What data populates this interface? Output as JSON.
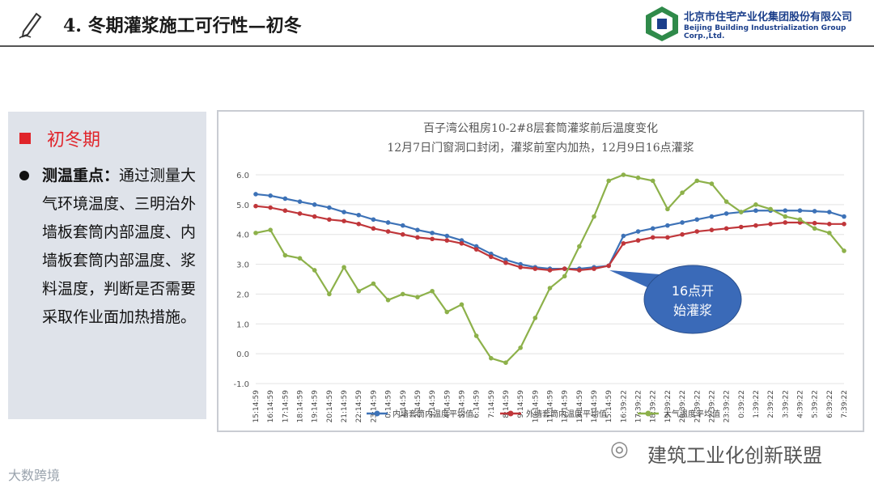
{
  "header": {
    "title": "4. 冬期灌浆施工可行性—初冬",
    "logo_cn": "北京市住宅产业化集团股份有限公司",
    "logo_en": "Beijing Building Industrialization Group Corp.,Ltd.",
    "accent": "#1b3f8b"
  },
  "panel": {
    "heading": "初冬期",
    "bold_label": "测温重点：",
    "body": "通过测量大气环境温度、三明治外墙板套筒内部温度、内墙板套筒内部温度、浆料温度，判断是否需要采取作业面加热措施。",
    "accent": "#e0242a"
  },
  "callout": {
    "line1": "16点开",
    "line2": "始灌浆",
    "color": "#3a6ab8"
  },
  "watermark": "建筑工业化创新联盟",
  "corner_logo": "大数跨境",
  "chart_data": {
    "type": "line",
    "title_lines": [
      "百子湾公租房10-2#8层套筒灌浆前后温度变化",
      "12月7日门窗洞口封闭，灌浆前室内加热，12月9日16点灌浆"
    ],
    "ylim": [
      -1.0,
      6.0
    ],
    "yticks": [
      "6.0",
      "5.0",
      "4.0",
      "3.0",
      "2.0",
      "1.0",
      "0.0",
      "-1.0"
    ],
    "categories": [
      "15:14:59",
      "16:14:59",
      "17:14:59",
      "18:14:59",
      "19:14:59",
      "20:14:59",
      "21:14:59",
      "22:14:59",
      "23:14:59",
      "0:14:59",
      "1:14:59",
      "2:14:59",
      "3:14:59",
      "4:14:59",
      "5:14:59",
      "6:14:59",
      "7:14:59",
      "8:14:59",
      "9:14:59",
      "10:14:59",
      "11:14:59",
      "12:14:59",
      "13:14:59",
      "14:14:59",
      "15:14:59",
      "16:39:22",
      "17:39:22",
      "18:39:22",
      "19:39:22",
      "20:39:22",
      "21:39:22",
      "22:39:22",
      "23:39:22",
      "0:39:22",
      "1:39:22",
      "2:39:22",
      "3:39:22",
      "4:39:22",
      "5:39:22",
      "6:39:22",
      "7:39:22"
    ],
    "series": [
      {
        "name": "内墙套筒内温度平均值",
        "color": "#3d72b7",
        "values": [
          5.35,
          5.3,
          5.2,
          5.1,
          5.0,
          4.9,
          4.75,
          4.65,
          4.5,
          4.4,
          4.3,
          4.15,
          4.05,
          3.95,
          3.8,
          3.6,
          3.35,
          3.15,
          3.0,
          2.9,
          2.85,
          2.85,
          2.85,
          2.9,
          2.95,
          3.95,
          4.1,
          4.2,
          4.3,
          4.4,
          4.5,
          4.6,
          4.7,
          4.75,
          4.8,
          4.8,
          4.8,
          4.8,
          4.78,
          4.75,
          4.6
        ]
      },
      {
        "name": "外墙套筒内温度平均值",
        "color": "#c0363a",
        "values": [
          4.95,
          4.9,
          4.8,
          4.7,
          4.6,
          4.5,
          4.45,
          4.35,
          4.2,
          4.1,
          4.0,
          3.9,
          3.85,
          3.8,
          3.7,
          3.5,
          3.25,
          3.05,
          2.9,
          2.85,
          2.8,
          2.85,
          2.8,
          2.85,
          2.95,
          3.7,
          3.8,
          3.9,
          3.9,
          4.0,
          4.1,
          4.15,
          4.2,
          4.25,
          4.3,
          4.35,
          4.4,
          4.4,
          4.38,
          4.35,
          4.35
        ]
      },
      {
        "name": "大气温度平均值",
        "color": "#8db14a",
        "values": [
          4.05,
          4.15,
          3.3,
          3.2,
          2.8,
          2.0,
          2.9,
          2.1,
          2.35,
          1.8,
          2.0,
          1.9,
          2.1,
          1.4,
          1.65,
          0.6,
          -0.15,
          -0.3,
          0.2,
          1.2,
          2.2,
          2.6,
          3.6,
          4.6,
          5.8,
          6.0,
          5.9,
          5.8,
          4.85,
          5.4,
          5.8,
          5.7,
          5.1,
          4.75,
          5.0,
          4.85,
          4.6,
          4.5,
          4.2,
          4.05,
          3.45
        ]
      }
    ]
  }
}
